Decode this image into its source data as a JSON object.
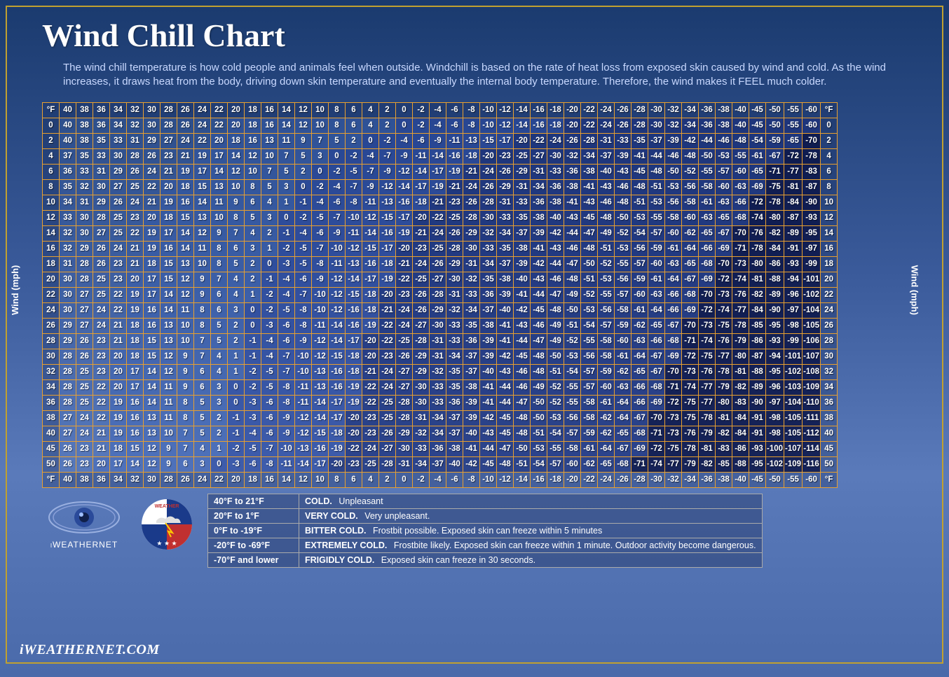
{
  "title": "Wind Chill Chart",
  "description": "The wind chill temperature is how cold people and animals feel when outside. Windchill is based on the rate of heat loss from exposed skin caused by wind and cold. As the wind increases, it draws heat from the body, driving down skin temperature and eventually the internal body temperature. Therefore, the wind makes it FEEL much colder.",
  "axis_label": "Wind (mph)",
  "corner_label": "°F",
  "temp_headers": [
    40,
    38,
    36,
    34,
    32,
    30,
    28,
    26,
    24,
    22,
    20,
    18,
    16,
    14,
    12,
    10,
    8,
    6,
    4,
    2,
    0,
    -2,
    -4,
    -6,
    -8,
    -10,
    -12,
    -14,
    -16,
    -18,
    -20,
    -22,
    -24,
    -26,
    -28,
    -30,
    -32,
    -34,
    -36,
    -38,
    -40,
    -45,
    -50,
    -55,
    -60
  ],
  "wind_headers": [
    0,
    2,
    4,
    6,
    8,
    10,
    12,
    14,
    16,
    18,
    20,
    22,
    24,
    26,
    28,
    30,
    32,
    34,
    36,
    38,
    40,
    45,
    50
  ],
  "rows": [
    [
      40,
      38,
      36,
      34,
      32,
      30,
      28,
      26,
      24,
      22,
      20,
      18,
      16,
      14,
      12,
      10,
      8,
      6,
      4,
      2,
      0,
      -2,
      -4,
      -6,
      -8,
      -10,
      -12,
      -14,
      -16,
      -18,
      -20,
      -22,
      -24,
      -26,
      -28,
      -30,
      -32,
      -34,
      -36,
      -38,
      -40,
      -45,
      -50,
      -55,
      -60
    ],
    [
      40,
      38,
      35,
      33,
      31,
      29,
      27,
      24,
      22,
      20,
      18,
      16,
      13,
      11,
      9,
      7,
      5,
      2,
      0,
      -2,
      -4,
      -6,
      -9,
      -11,
      -13,
      -15,
      -17,
      -20,
      -22,
      -24,
      -26,
      -28,
      -31,
      -33,
      -35,
      -37,
      -39,
      -42,
      -44,
      -46,
      -48,
      -54,
      -59,
      -65,
      -70
    ],
    [
      37,
      35,
      33,
      30,
      28,
      26,
      23,
      21,
      19,
      17,
      14,
      12,
      10,
      7,
      5,
      3,
      0,
      -2,
      -4,
      -7,
      -9,
      -11,
      -14,
      -16,
      -18,
      -20,
      -23,
      -25,
      -27,
      -30,
      -32,
      -34,
      -37,
      -39,
      -41,
      -44,
      -46,
      -48,
      -50,
      -53,
      -55,
      -61,
      -67,
      -72,
      -78
    ],
    [
      36,
      33,
      31,
      29,
      26,
      24,
      21,
      19,
      17,
      14,
      12,
      10,
      7,
      5,
      2,
      0,
      -2,
      -5,
      -7,
      -9,
      -12,
      -14,
      -17,
      -19,
      -21,
      -24,
      -26,
      -29,
      -31,
      -33,
      -36,
      -38,
      -40,
      -43,
      -45,
      -48,
      -50,
      -52,
      -55,
      -57,
      -60,
      -65,
      -71,
      -77,
      -83
    ],
    [
      35,
      32,
      30,
      27,
      25,
      22,
      20,
      18,
      15,
      13,
      10,
      8,
      5,
      3,
      0,
      -2,
      -4,
      -7,
      -9,
      -12,
      -14,
      -17,
      -19,
      -21,
      -24,
      -26,
      -29,
      -31,
      -34,
      -36,
      -38,
      -41,
      -43,
      -46,
      -48,
      -51,
      -53,
      -56,
      -58,
      -60,
      -63,
      -69,
      -75,
      -81,
      -87
    ],
    [
      34,
      31,
      29,
      26,
      24,
      21,
      19,
      16,
      14,
      11,
      9,
      6,
      4,
      1,
      -1,
      -4,
      -6,
      -8,
      -11,
      -13,
      -16,
      -18,
      -21,
      -23,
      -26,
      -28,
      -31,
      -33,
      -36,
      -38,
      -41,
      -43,
      -46,
      -48,
      -51,
      -53,
      -56,
      -58,
      -61,
      -63,
      -66,
      -72,
      -78,
      -84,
      -90
    ],
    [
      33,
      30,
      28,
      25,
      23,
      20,
      18,
      15,
      13,
      10,
      8,
      5,
      3,
      0,
      -2,
      -5,
      -7,
      -10,
      -12,
      -15,
      -17,
      -20,
      -22,
      -25,
      -28,
      -30,
      -33,
      -35,
      -38,
      -40,
      -43,
      -45,
      -48,
      -50,
      -53,
      -55,
      -58,
      -60,
      -63,
      -65,
      -68,
      -74,
      -80,
      -87,
      -93
    ],
    [
      32,
      30,
      27,
      25,
      22,
      19,
      17,
      14,
      12,
      9,
      7,
      4,
      2,
      -1,
      -4,
      -6,
      -9,
      -11,
      -14,
      -16,
      -19,
      -21,
      -24,
      -26,
      -29,
      -32,
      -34,
      -37,
      -39,
      -42,
      -44,
      -47,
      -49,
      -52,
      -54,
      -57,
      -60,
      -62,
      -65,
      -67,
      -70,
      -76,
      -82,
      -89,
      -95
    ],
    [
      32,
      29,
      26,
      24,
      21,
      19,
      16,
      14,
      11,
      8,
      6,
      3,
      1,
      -2,
      -5,
      -7,
      -10,
      -12,
      -15,
      -17,
      -20,
      -23,
      -25,
      -28,
      -30,
      -33,
      -35,
      -38,
      -41,
      -43,
      -46,
      -48,
      -51,
      -53,
      -56,
      -59,
      -61,
      -64,
      -66,
      -69,
      -71,
      -78,
      -84,
      -91,
      -97
    ],
    [
      31,
      28,
      26,
      23,
      21,
      18,
      15,
      13,
      10,
      8,
      5,
      2,
      0,
      -3,
      -5,
      -8,
      -11,
      -13,
      -16,
      -18,
      -21,
      -24,
      -26,
      -29,
      -31,
      -34,
      -37,
      -39,
      -42,
      -44,
      -47,
      -50,
      -52,
      -55,
      -57,
      -60,
      -63,
      -65,
      -68,
      -70,
      -73,
      -80,
      -86,
      -93,
      -99
    ],
    [
      30,
      28,
      25,
      23,
      20,
      17,
      15,
      12,
      9,
      7,
      4,
      2,
      -1,
      -4,
      -6,
      -9,
      -12,
      -14,
      -17,
      -19,
      -22,
      -25,
      -27,
      -30,
      -32,
      -35,
      -38,
      -40,
      -43,
      -46,
      -48,
      -51,
      -53,
      -56,
      -59,
      -61,
      -64,
      -67,
      -69,
      -72,
      -74,
      -81,
      -88,
      -94,
      -101
    ],
    [
      30,
      27,
      25,
      22,
      19,
      17,
      14,
      12,
      9,
      6,
      4,
      1,
      -2,
      -4,
      -7,
      -10,
      -12,
      -15,
      -18,
      -20,
      -23,
      -26,
      -28,
      -31,
      -33,
      -36,
      -39,
      -41,
      -44,
      -47,
      -49,
      -52,
      -55,
      -57,
      -60,
      -63,
      -66,
      -68,
      -70,
      -73,
      -76,
      -82,
      -89,
      -96,
      -102
    ],
    [
      30,
      27,
      24,
      22,
      19,
      16,
      14,
      11,
      8,
      6,
      3,
      0,
      -2,
      -5,
      -8,
      -10,
      -12,
      -16,
      -18,
      -21,
      -24,
      -26,
      -29,
      -32,
      -34,
      -37,
      -40,
      -42,
      -45,
      -48,
      -50,
      -53,
      -56,
      -58,
      -61,
      -64,
      -66,
      -69,
      -72,
      -74,
      -77,
      -84,
      -90,
      -97,
      -104
    ],
    [
      29,
      27,
      24,
      21,
      18,
      16,
      13,
      10,
      8,
      5,
      2,
      0,
      -3,
      -6,
      -8,
      -11,
      -14,
      -16,
      -19,
      -22,
      -24,
      -27,
      -30,
      -33,
      -35,
      -38,
      -41,
      -43,
      -46,
      -49,
      -51,
      -54,
      -57,
      -59,
      -62,
      -65,
      -67,
      -70,
      -73,
      -75,
      -78,
      -85,
      -95,
      -98,
      -105
    ],
    [
      29,
      26,
      23,
      21,
      18,
      15,
      13,
      10,
      7,
      5,
      2,
      -1,
      -4,
      -6,
      -9,
      -12,
      -14,
      -17,
      -20,
      -22,
      -25,
      -28,
      -31,
      -33,
      -36,
      -39,
      -41,
      -44,
      -47,
      -49,
      -52,
      -55,
      -58,
      -60,
      -63,
      -66,
      -68,
      -71,
      -74,
      -76,
      -79,
      -86,
      -93,
      -99,
      -106
    ],
    [
      28,
      26,
      23,
      20,
      18,
      15,
      12,
      9,
      7,
      4,
      1,
      -1,
      -4,
      -7,
      -10,
      -12,
      -15,
      -18,
      -20,
      -23,
      -26,
      -29,
      -31,
      -34,
      -37,
      -39,
      -42,
      -45,
      -48,
      -50,
      -53,
      -56,
      -58,
      -61,
      -64,
      -67,
      -69,
      -72,
      -75,
      -77,
      -80,
      -87,
      -94,
      -101,
      -107
    ],
    [
      28,
      25,
      23,
      20,
      17,
      14,
      12,
      9,
      6,
      4,
      1,
      -2,
      -5,
      -7,
      -10,
      -13,
      -16,
      -18,
      -21,
      -24,
      -27,
      -29,
      -32,
      -35,
      -37,
      -40,
      -43,
      -46,
      -48,
      -51,
      -54,
      -57,
      -59,
      -62,
      -65,
      -67,
      -70,
      -73,
      -76,
      -78,
      -81,
      -88,
      -95,
      -102,
      -108
    ],
    [
      28,
      25,
      22,
      20,
      17,
      14,
      11,
      9,
      6,
      3,
      0,
      -2,
      -5,
      -8,
      -11,
      -13,
      -16,
      -19,
      -22,
      -24,
      -27,
      -30,
      -33,
      -35,
      -38,
      -41,
      -44,
      -46,
      -49,
      -52,
      -55,
      -57,
      -60,
      -63,
      -66,
      -68,
      -71,
      -74,
      -77,
      -79,
      -82,
      -89,
      -96,
      -103,
      -109
    ],
    [
      28,
      25,
      22,
      19,
      16,
      14,
      11,
      8,
      5,
      3,
      0,
      -3,
      -6,
      -8,
      -11,
      -14,
      -17,
      -19,
      -22,
      -25,
      -28,
      -30,
      -33,
      -36,
      -39,
      -41,
      -44,
      -47,
      -50,
      -52,
      -55,
      -58,
      -61,
      -64,
      -66,
      -69,
      -72,
      -75,
      -77,
      -80,
      -83,
      -90,
      -97,
      -104,
      -110
    ],
    [
      27,
      24,
      22,
      19,
      16,
      13,
      11,
      8,
      5,
      2,
      -1,
      -3,
      -6,
      -9,
      -12,
      -14,
      -17,
      -20,
      -23,
      -25,
      -28,
      -31,
      -34,
      -37,
      -39,
      -42,
      -45,
      -48,
      -50,
      -53,
      -56,
      -58,
      -62,
      -64,
      -67,
      -70,
      -73,
      -75,
      -78,
      -81,
      -84,
      -91,
      -98,
      -105,
      -111
    ],
    [
      27,
      24,
      21,
      19,
      16,
      13,
      10,
      7,
      5,
      2,
      -1,
      -4,
      -6,
      -9,
      -12,
      -15,
      -18,
      -20,
      -23,
      -26,
      -29,
      -32,
      -34,
      -37,
      -40,
      -43,
      -45,
      -48,
      -51,
      -54,
      -57,
      -59,
      -62,
      -65,
      -68,
      -71,
      -73,
      -76,
      -79,
      -82,
      -84,
      -91,
      -98,
      -105,
      -112
    ],
    [
      26,
      23,
      21,
      18,
      15,
      12,
      9,
      7,
      4,
      1,
      -2,
      -5,
      -7,
      -10,
      -13,
      -16,
      -19,
      -22,
      -24,
      -27,
      -30,
      -33,
      -36,
      -38,
      -41,
      -44,
      -47,
      -50,
      -53,
      -55,
      -58,
      -61,
      -64,
      -67,
      -69,
      -72,
      -75,
      -78,
      -81,
      -83,
      -86,
      -93,
      -100,
      -107,
      -114
    ],
    [
      26,
      23,
      20,
      17,
      14,
      12,
      9,
      6,
      3,
      0,
      -3,
      -6,
      -8,
      -11,
      -14,
      -17,
      -20,
      -23,
      -25,
      -28,
      -31,
      -34,
      -37,
      -40,
      -42,
      -45,
      -48,
      -51,
      -54,
      -57,
      -60,
      -62,
      -65,
      -68,
      -71,
      -74,
      -77,
      -79,
      -82,
      -85,
      -88,
      -95,
      -102,
      -109,
      -116
    ]
  ],
  "zones": [
    {
      "min": 21,
      "max": 999,
      "color": "rgba(80,120,200,0.15)"
    },
    {
      "min": 1,
      "max": 20,
      "color": "rgba(60,100,190,0.35)"
    },
    {
      "min": -19,
      "max": 0,
      "color": "rgba(40,70,160,0.55)"
    },
    {
      "min": -69,
      "max": -20,
      "color": "rgba(25,45,120,0.70)"
    },
    {
      "min": -999,
      "max": -70,
      "color": "rgba(10,20,70,0.85)"
    }
  ],
  "legend": [
    {
      "range": "40°F to 21°F",
      "label": "COLD.",
      "text": "Unpleasant"
    },
    {
      "range": "20°F to 1°F",
      "label": "VERY COLD.",
      "text": "Very unpleasant."
    },
    {
      "range": "0°F to -19°F",
      "label": "BITTER COLD.",
      "text": "Frostbit possible. Exposed skin can freeze within 5 minutes"
    },
    {
      "range": "-20°F to -69°F",
      "label": "EXTREMELY COLD.",
      "text": "Frostbite likely. Exposed skin can freeze within 1 minute. Outdoor activity become dangerous."
    },
    {
      "range": "-70°F and lower",
      "label": "FRIGIDLY COLD.",
      "text": "Exposed skin can freeze in 30 seconds."
    }
  ],
  "logo1_top": "iWEATHERNET",
  "brand": "iWEATHERNET.COM"
}
